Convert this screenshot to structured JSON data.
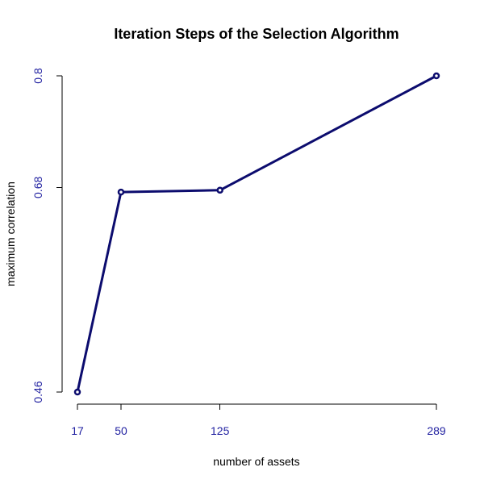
{
  "chart_data": {
    "type": "line",
    "title": "Iteration Steps of the Selection Algorithm",
    "xlabel": "number of assets",
    "ylabel": "maximum correlation",
    "x": [
      17,
      50,
      125,
      289
    ],
    "y": [
      0.46,
      0.675,
      0.677,
      0.8
    ],
    "x_ticks": [
      17,
      50,
      125,
      289
    ],
    "x_tick_labels": [
      "17",
      "50",
      "125",
      "289"
    ],
    "y_ticks": [
      0.46,
      0.68,
      0.8
    ],
    "y_tick_labels": [
      "0.46",
      "0.68",
      "0.8"
    ],
    "xlim": [
      17,
      289
    ],
    "ylim": [
      0.46,
      0.8
    ],
    "grid": false,
    "colors": {
      "series": "#0c0c6e",
      "tick_labels": "#1f1fa0",
      "axis": "#000000"
    }
  }
}
